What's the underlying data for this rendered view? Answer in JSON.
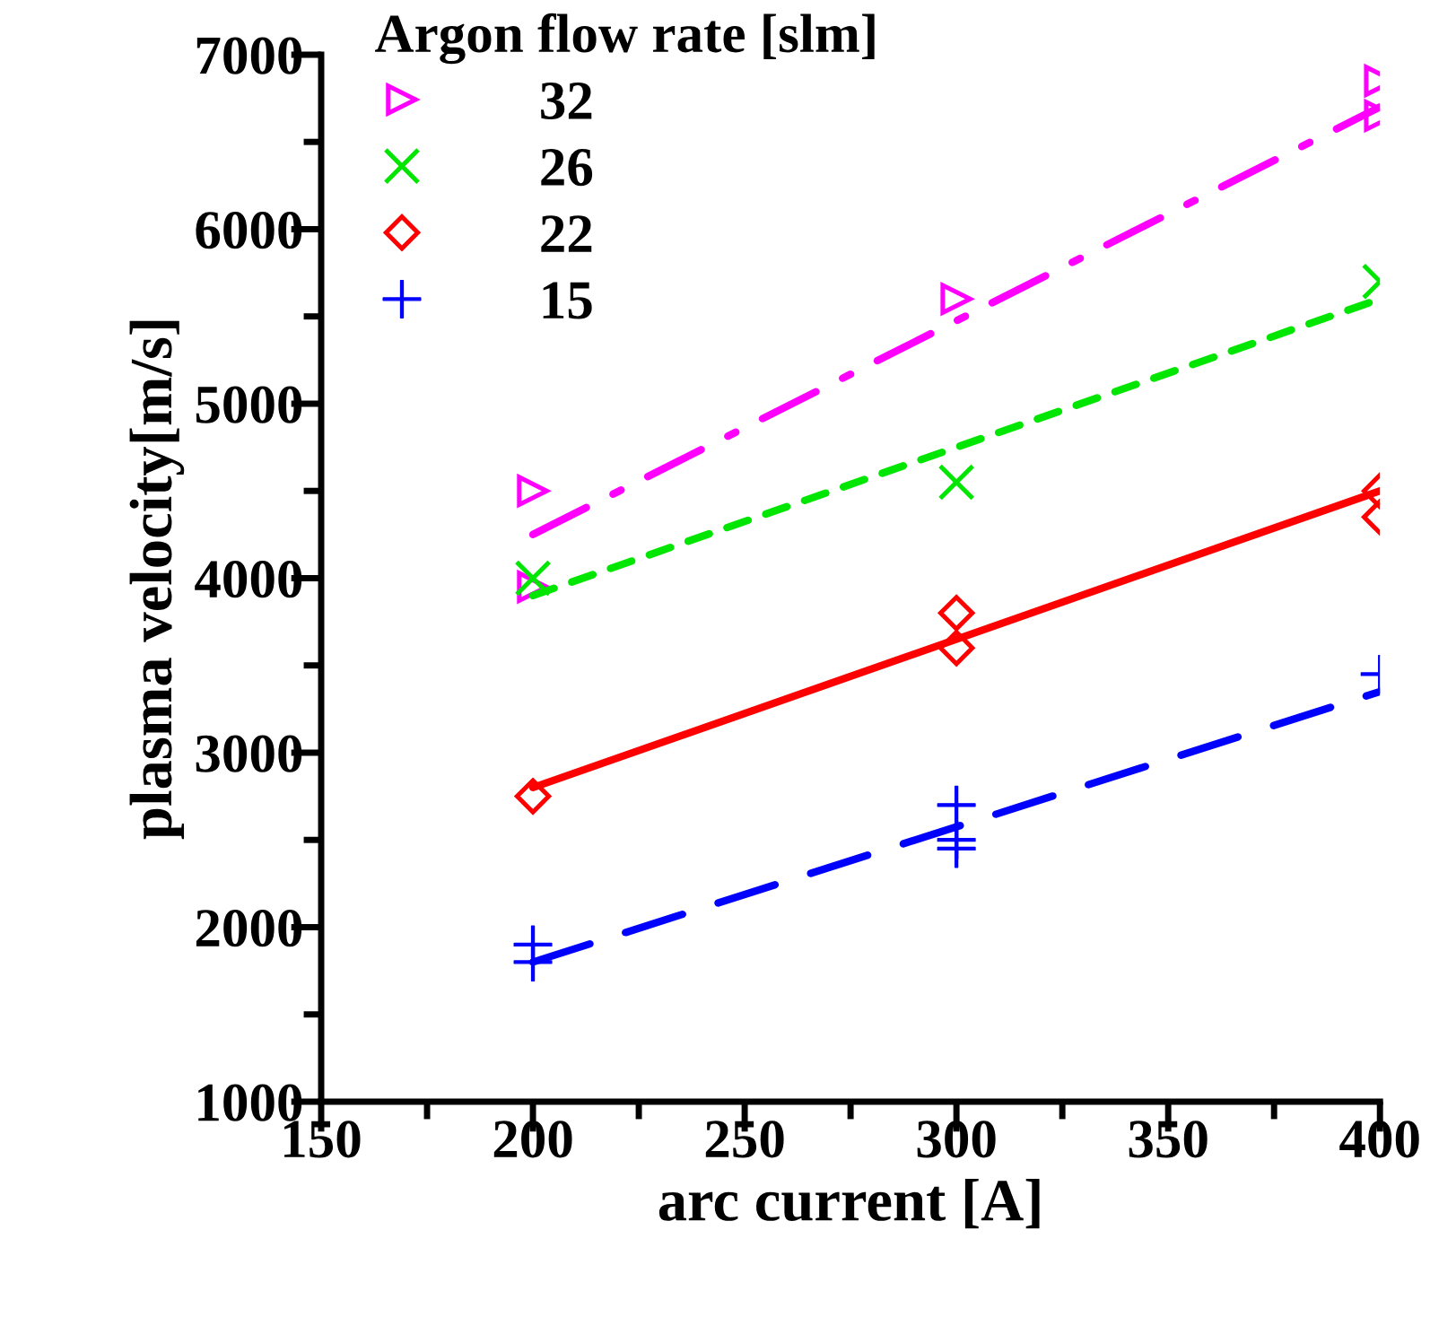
{
  "chart_data": {
    "type": "scatter",
    "xlabel": "arc current [A]",
    "ylabel": "plasma velocity[m/s]",
    "legend_title": "Argon flow rate [slm]",
    "legend": "top left",
    "grid": false,
    "xlim": [
      150,
      400
    ],
    "xticks": [
      150,
      {
        "value": 175,
        "label": null
      },
      200,
      {
        "value": 225,
        "label": null
      },
      250,
      {
        "value": 275,
        "label": null
      },
      300,
      {
        "value": 325,
        "label": null
      },
      350,
      {
        "value": 375,
        "label": null
      },
      400
    ],
    "ylim": [
      1000,
      7000
    ],
    "yticks": [
      1000,
      {
        "value": 1500,
        "label": null
      },
      2000,
      {
        "value": 2500,
        "label": null
      },
      3000,
      {
        "value": 3500,
        "label": null
      },
      4000,
      {
        "value": 4500,
        "label": null
      },
      5000,
      {
        "value": 5500,
        "label": null
      },
      6000,
      {
        "value": 6500,
        "label": null
      },
      7000
    ],
    "series": [
      {
        "name": "32",
        "marker": "triangle-right",
        "color": "#ff00ff",
        "x": [
          200,
          200,
          300,
          400,
          400
        ],
        "values": [
          4500,
          3950,
          5600,
          6850,
          6650
        ]
      },
      {
        "name": "26",
        "marker": "x",
        "color": "#00e600",
        "x": [
          200,
          300,
          400
        ],
        "values": [
          4000,
          4550,
          5700
        ]
      },
      {
        "name": "22",
        "marker": "diamond",
        "color": "#ff0000",
        "x": [
          200,
          300,
          300,
          400,
          400
        ],
        "values": [
          2750,
          3800,
          3600,
          4500,
          4350
        ]
      },
      {
        "name": "15",
        "marker": "cross",
        "color": "#0000ff",
        "x": [
          200,
          200,
          300,
          300,
          300,
          400
        ],
        "values": [
          1900,
          1800,
          2700,
          2500,
          2450,
          3450
        ]
      },
      {
        "type": "line",
        "line_style": "dashdot",
        "color": "#ff00ff",
        "x": [
          200,
          400
        ],
        "values": [
          4250,
          6700
        ]
      },
      {
        "type": "line",
        "line_style": "dotted",
        "color": "#00e600",
        "x": [
          200,
          400
        ],
        "values": [
          3900,
          5600
        ]
      },
      {
        "type": "line",
        "line_style": "solid",
        "color": "#ff0000",
        "x": [
          200,
          400
        ],
        "values": [
          2800,
          4500
        ]
      },
      {
        "type": "line",
        "line_style": "dashed",
        "color": "#0000ff",
        "x": [
          200,
          400
        ],
        "values": [
          1800,
          3350
        ]
      }
    ]
  }
}
